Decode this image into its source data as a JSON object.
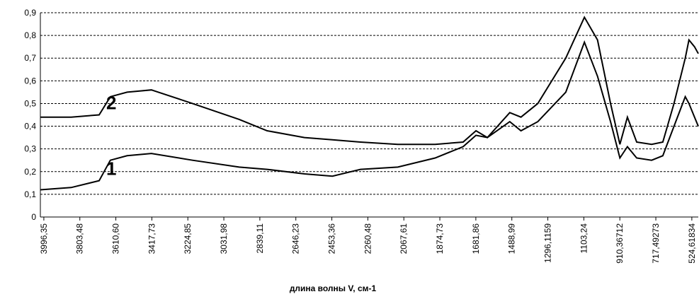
{
  "chart_data": {
    "type": "line",
    "x_label": "длина волны V, см-1",
    "x": [
      4015,
      3850,
      3700,
      3640,
      3550,
      3420,
      3200,
      2950,
      2800,
      2600,
      2450,
      2300,
      2100,
      1900,
      1750,
      1681,
      1620,
      1500,
      1440,
      1350,
      1200,
      1100,
      1030,
      960,
      910,
      870,
      820,
      740,
      680,
      620,
      560,
      540,
      510,
      490
    ],
    "series": [
      {
        "name": "2",
        "color": "#000000",
        "values": [
          0.44,
          0.44,
          0.45,
          0.53,
          0.55,
          0.56,
          0.5,
          0.43,
          0.38,
          0.35,
          0.34,
          0.33,
          0.32,
          0.32,
          0.33,
          0.38,
          0.35,
          0.46,
          0.44,
          0.5,
          0.7,
          0.88,
          0.78,
          0.5,
          0.32,
          0.44,
          0.33,
          0.32,
          0.33,
          0.5,
          0.7,
          0.78,
          0.75,
          0.72
        ]
      },
      {
        "name": "1",
        "color": "#000000",
        "values": [
          0.12,
          0.13,
          0.16,
          0.25,
          0.27,
          0.28,
          0.25,
          0.22,
          0.21,
          0.19,
          0.18,
          0.21,
          0.22,
          0.26,
          0.31,
          0.36,
          0.35,
          0.42,
          0.38,
          0.42,
          0.55,
          0.77,
          0.62,
          0.42,
          0.26,
          0.31,
          0.26,
          0.25,
          0.27,
          0.4,
          0.53,
          0.5,
          0.44,
          0.4
        ]
      }
    ],
    "xlim": [
      4015,
      490
    ],
    "xticks": [
      {
        "value": 3996.35,
        "label": "3996,35"
      },
      {
        "value": 3803.48,
        "label": "3803,48"
      },
      {
        "value": 3610.6,
        "label": "3610,60"
      },
      {
        "value": 3417.73,
        "label": "3417,73"
      },
      {
        "value": 3224.85,
        "label": "3224,85"
      },
      {
        "value": 3031.98,
        "label": "3031,98"
      },
      {
        "value": 2839.11,
        "label": "2839,11"
      },
      {
        "value": 2646.23,
        "label": "2646,23"
      },
      {
        "value": 2453.36,
        "label": "2453,36"
      },
      {
        "value": 2260.48,
        "label": "2260,48"
      },
      {
        "value": 2067.61,
        "label": "2067,61"
      },
      {
        "value": 1874.73,
        "label": "1874,73"
      },
      {
        "value": 1681.86,
        "label": "1681,86"
      },
      {
        "value": 1488.99,
        "label": "1488,99"
      },
      {
        "value": 1296.1159,
        "label": "1296,1159"
      },
      {
        "value": 1103.24,
        "label": "1103,24"
      },
      {
        "value": 910.36712,
        "label": "910,36712"
      },
      {
        "value": 717.49273,
        "label": "717,49273"
      },
      {
        "value": 524.61834,
        "label": "524,61834"
      }
    ],
    "ylim": [
      0,
      0.9
    ],
    "yticks": [
      0,
      {
        "value": 0.1,
        "label": "0,1"
      },
      {
        "value": 0.2,
        "label": "0,2"
      },
      {
        "value": 0.3,
        "label": "0,3"
      },
      {
        "value": 0.4,
        "label": "0,4"
      },
      {
        "value": 0.5,
        "label": "0,5"
      },
      {
        "value": 0.6,
        "label": "0,6"
      },
      {
        "value": 0.7,
        "label": "0,7"
      },
      {
        "value": 0.8,
        "label": "0,8"
      },
      {
        "value": 0.9,
        "label": "0,9"
      }
    ],
    "grid": true
  }
}
